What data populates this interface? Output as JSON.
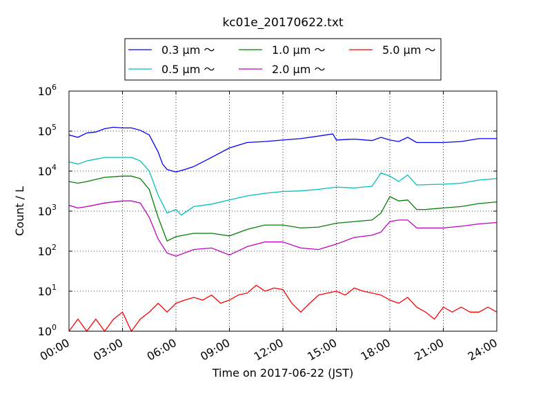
{
  "chart_data": {
    "type": "line",
    "title": "kc01e_20170622.txt",
    "xlabel": "Time on 2017-06-22 (JST)",
    "ylabel": "Count / L",
    "yscale": "log",
    "ylim": [
      1,
      1000000
    ],
    "xlim": [
      0,
      24
    ],
    "grid": true,
    "legend_position": "top",
    "x_ticks": [
      {
        "value": 0,
        "label": "00:00"
      },
      {
        "value": 3,
        "label": "03:00"
      },
      {
        "value": 6,
        "label": "06:00"
      },
      {
        "value": 9,
        "label": "09:00"
      },
      {
        "value": 12,
        "label": "12:00"
      },
      {
        "value": 15,
        "label": "15:00"
      },
      {
        "value": 18,
        "label": "18:00"
      },
      {
        "value": 21,
        "label": "21:00"
      },
      {
        "value": 24,
        "label": "24:00"
      }
    ],
    "y_ticks": [
      {
        "value": 1,
        "base": "10",
        "exp": "0"
      },
      {
        "value": 10,
        "base": "10",
        "exp": "1"
      },
      {
        "value": 100,
        "base": "10",
        "exp": "2"
      },
      {
        "value": 1000,
        "base": "10",
        "exp": "3"
      },
      {
        "value": 10000,
        "base": "10",
        "exp": "4"
      },
      {
        "value": 100000,
        "base": "10",
        "exp": "5"
      },
      {
        "value": 1000000,
        "base": "10",
        "exp": "6"
      }
    ],
    "series": [
      {
        "name": "0.3 μm ～",
        "color": "#0000ff",
        "points": [
          [
            0,
            80000
          ],
          [
            0.5,
            70000
          ],
          [
            1,
            90000
          ],
          [
            1.5,
            95000
          ],
          [
            2,
            115000
          ],
          [
            2.5,
            125000
          ],
          [
            3,
            120000
          ],
          [
            3.5,
            120000
          ],
          [
            4,
            105000
          ],
          [
            4.5,
            80000
          ],
          [
            5,
            30000
          ],
          [
            5.25,
            15000
          ],
          [
            5.5,
            11000
          ],
          [
            6,
            9500
          ],
          [
            6.5,
            11000
          ],
          [
            7,
            13000
          ],
          [
            8,
            22000
          ],
          [
            9,
            38000
          ],
          [
            10,
            52000
          ],
          [
            11,
            55000
          ],
          [
            12,
            60000
          ],
          [
            13,
            65000
          ],
          [
            14,
            75000
          ],
          [
            14.8,
            85000
          ],
          [
            15,
            60000
          ],
          [
            16,
            63000
          ],
          [
            17,
            58000
          ],
          [
            17.5,
            70000
          ],
          [
            18,
            60000
          ],
          [
            18.5,
            55000
          ],
          [
            19,
            70000
          ],
          [
            19.5,
            52000
          ],
          [
            20,
            52000
          ],
          [
            21,
            52000
          ],
          [
            22,
            55000
          ],
          [
            23,
            65000
          ],
          [
            24,
            65000
          ]
        ]
      },
      {
        "name": "0.5 μm ～",
        "color": "#00bfbf",
        "points": [
          [
            0,
            17000
          ],
          [
            0.5,
            15000
          ],
          [
            1,
            18000
          ],
          [
            2,
            22000
          ],
          [
            3,
            22000
          ],
          [
            3.5,
            22000
          ],
          [
            4,
            18000
          ],
          [
            4.5,
            10000
          ],
          [
            5,
            2500
          ],
          [
            5.5,
            900
          ],
          [
            6,
            1100
          ],
          [
            6.3,
            800
          ],
          [
            7,
            1300
          ],
          [
            8,
            1500
          ],
          [
            9,
            1900
          ],
          [
            10,
            2400
          ],
          [
            11,
            2800
          ],
          [
            12,
            3100
          ],
          [
            13,
            3200
          ],
          [
            14,
            3500
          ],
          [
            15,
            4000
          ],
          [
            16,
            3800
          ],
          [
            17,
            4200
          ],
          [
            17.5,
            9000
          ],
          [
            18,
            7500
          ],
          [
            18.5,
            5500
          ],
          [
            19,
            8000
          ],
          [
            19.5,
            4500
          ],
          [
            20,
            4600
          ],
          [
            21,
            4700
          ],
          [
            22,
            5000
          ],
          [
            23,
            6000
          ],
          [
            24,
            6500
          ]
        ]
      },
      {
        "name": "1.0 μm ～",
        "color": "#008000",
        "points": [
          [
            0,
            5500
          ],
          [
            0.5,
            5000
          ],
          [
            1,
            5500
          ],
          [
            2,
            7000
          ],
          [
            3,
            7500
          ],
          [
            3.5,
            7500
          ],
          [
            4,
            6500
          ],
          [
            4.5,
            3500
          ],
          [
            5,
            700
          ],
          [
            5.5,
            180
          ],
          [
            6,
            230
          ],
          [
            7,
            280
          ],
          [
            8,
            280
          ],
          [
            9,
            240
          ],
          [
            10,
            350
          ],
          [
            11,
            450
          ],
          [
            12,
            450
          ],
          [
            13,
            380
          ],
          [
            14,
            400
          ],
          [
            15,
            500
          ],
          [
            16,
            550
          ],
          [
            17,
            600
          ],
          [
            17.5,
            900
          ],
          [
            18,
            2300
          ],
          [
            18.5,
            1800
          ],
          [
            19,
            1900
          ],
          [
            19.5,
            1100
          ],
          [
            20,
            1100
          ],
          [
            21,
            1200
          ],
          [
            22,
            1300
          ],
          [
            23,
            1550
          ],
          [
            24,
            1700
          ]
        ]
      },
      {
        "name": "2.0 μm ～",
        "color": "#bf00bf",
        "points": [
          [
            0,
            1400
          ],
          [
            0.5,
            1200
          ],
          [
            1,
            1300
          ],
          [
            2,
            1600
          ],
          [
            3,
            1800
          ],
          [
            3.5,
            1800
          ],
          [
            4,
            1600
          ],
          [
            4.5,
            700
          ],
          [
            5,
            200
          ],
          [
            5.5,
            90
          ],
          [
            6,
            75
          ],
          [
            7,
            110
          ],
          [
            8,
            120
          ],
          [
            9,
            80
          ],
          [
            10,
            130
          ],
          [
            11,
            170
          ],
          [
            12,
            170
          ],
          [
            13,
            120
          ],
          [
            14,
            110
          ],
          [
            15,
            150
          ],
          [
            16,
            220
          ],
          [
            17,
            250
          ],
          [
            17.5,
            300
          ],
          [
            18,
            550
          ],
          [
            18.5,
            600
          ],
          [
            19,
            600
          ],
          [
            19.5,
            380
          ],
          [
            20,
            380
          ],
          [
            21,
            380
          ],
          [
            22,
            420
          ],
          [
            23,
            480
          ],
          [
            24,
            520
          ]
        ]
      },
      {
        "name": "5.0 μm ～",
        "color": "#ff0000",
        "points": [
          [
            0,
            1
          ],
          [
            0.5,
            2
          ],
          [
            1,
            1
          ],
          [
            1.5,
            2
          ],
          [
            2,
            1
          ],
          [
            2.5,
            2
          ],
          [
            3,
            3
          ],
          [
            3.5,
            1
          ],
          [
            4,
            2
          ],
          [
            4.5,
            3
          ],
          [
            5,
            5
          ],
          [
            5.5,
            3
          ],
          [
            6,
            5
          ],
          [
            6.5,
            6
          ],
          [
            7,
            7
          ],
          [
            7.5,
            6
          ],
          [
            8,
            8
          ],
          [
            8.5,
            5
          ],
          [
            9,
            6
          ],
          [
            9.5,
            8
          ],
          [
            10,
            9
          ],
          [
            10.5,
            14
          ],
          [
            11,
            10
          ],
          [
            11.5,
            12
          ],
          [
            12,
            11
          ],
          [
            12.5,
            5
          ],
          [
            13,
            3
          ],
          [
            13.5,
            5
          ],
          [
            14,
            8
          ],
          [
            14.5,
            9
          ],
          [
            15,
            10
          ],
          [
            15.5,
            8
          ],
          [
            16,
            12
          ],
          [
            16.5,
            10
          ],
          [
            17,
            9
          ],
          [
            17.5,
            8
          ],
          [
            18,
            6
          ],
          [
            18.5,
            5
          ],
          [
            19,
            7
          ],
          [
            19.5,
            4
          ],
          [
            20,
            3
          ],
          [
            20.5,
            2
          ],
          [
            21,
            4
          ],
          [
            21.5,
            3
          ],
          [
            22,
            4
          ],
          [
            22.5,
            3
          ],
          [
            23,
            3
          ],
          [
            23.5,
            4
          ],
          [
            24,
            3
          ]
        ]
      }
    ]
  }
}
